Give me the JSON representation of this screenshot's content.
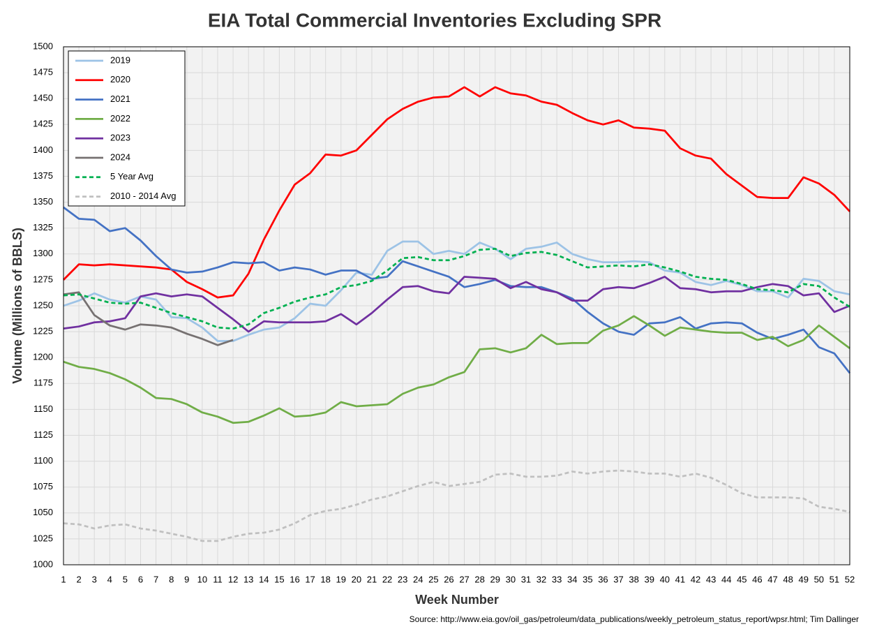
{
  "chart_data": {
    "type": "line",
    "title": "EIA Total Commercial Inventories Excluding SPR",
    "xlabel": "Week Number",
    "ylabel": "Volume (Millions of BBLS)",
    "source": "Source: http://www.eia.gov/oil_gas/petroleum/data_publications/weekly_petroleum_status_report/wpsr.html; Tim Dallinger",
    "x": [
      1,
      2,
      3,
      4,
      5,
      6,
      7,
      8,
      9,
      10,
      11,
      12,
      13,
      14,
      15,
      16,
      17,
      18,
      19,
      20,
      21,
      22,
      23,
      24,
      25,
      26,
      27,
      28,
      29,
      30,
      31,
      32,
      33,
      34,
      35,
      36,
      37,
      38,
      39,
      40,
      41,
      42,
      43,
      44,
      45,
      46,
      47,
      48,
      49,
      50,
      51,
      52
    ],
    "xlim": [
      1,
      52
    ],
    "xticks": [
      1,
      2,
      3,
      4,
      5,
      6,
      7,
      8,
      9,
      10,
      11,
      12,
      13,
      14,
      15,
      16,
      17,
      18,
      19,
      20,
      21,
      22,
      23,
      24,
      25,
      26,
      27,
      28,
      29,
      30,
      31,
      32,
      33,
      34,
      35,
      36,
      37,
      38,
      39,
      40,
      41,
      42,
      43,
      44,
      45,
      46,
      47,
      48,
      49,
      50,
      51,
      52
    ],
    "ylim": [
      1000,
      1500
    ],
    "yticks": [
      1000,
      1025,
      1050,
      1075,
      1100,
      1125,
      1150,
      1175,
      1200,
      1225,
      1250,
      1275,
      1300,
      1325,
      1350,
      1375,
      1400,
      1425,
      1450,
      1475,
      1500
    ],
    "grid": true,
    "legend": "upper left",
    "series": [
      {
        "name": "2019",
        "color": "#9dc3e6",
        "dashed": false,
        "values": [
          1250,
          1255,
          1262,
          1256,
          1253,
          1259,
          1256,
          1239,
          1238,
          1229,
          1216,
          1216,
          1222,
          1227,
          1229,
          1238,
          1252,
          1250,
          1265,
          1282,
          1280,
          1303,
          1312,
          1312,
          1300,
          1303,
          1300,
          1311,
          1305,
          1295,
          1305,
          1307,
          1311,
          1300,
          1295,
          1292,
          1292,
          1293,
          1292,
          1284,
          1282,
          1273,
          1270,
          1274,
          1270,
          1264,
          1264,
          1258,
          1276,
          1274,
          1264,
          1261
        ]
      },
      {
        "name": "2020",
        "color": "#ff0000",
        "dashed": false,
        "values": [
          1275,
          1290,
          1289,
          1290,
          1289,
          1288,
          1287,
          1285,
          1273,
          1266,
          1258,
          1260,
          1281,
          1314,
          1342,
          1367,
          1378,
          1396,
          1395,
          1400,
          1415,
          1430,
          1440,
          1447,
          1451,
          1452,
          1461,
          1452,
          1461,
          1455,
          1453,
          1447,
          1444,
          1436,
          1429,
          1425,
          1429,
          1422,
          1421,
          1419,
          1402,
          1395,
          1392,
          1377,
          1366,
          1355,
          1354,
          1354,
          1374,
          1368,
          1357,
          1341
        ]
      },
      {
        "name": "2021",
        "color": "#4472c4",
        "dashed": false,
        "values": [
          1345,
          1334,
          1333,
          1322,
          1325,
          1313,
          1298,
          1285,
          1282,
          1283,
          1287,
          1292,
          1291,
          1292,
          1284,
          1287,
          1285,
          1280,
          1284,
          1284,
          1276,
          1278,
          1293,
          1288,
          1283,
          1278,
          1268,
          1271,
          1275,
          1269,
          1268,
          1268,
          1263,
          1257,
          1244,
          1233,
          1225,
          1222,
          1233,
          1234,
          1239,
          1228,
          1233,
          1234,
          1233,
          1224,
          1218,
          1222,
          1227,
          1210,
          1204,
          1185
        ]
      },
      {
        "name": "2022",
        "color": "#70ad47",
        "dashed": false,
        "values": [
          1196,
          1191,
          1189,
          1185,
          1179,
          1171,
          1161,
          1160,
          1155,
          1147,
          1143,
          1137,
          1138,
          1144,
          1151,
          1143,
          1144,
          1147,
          1157,
          1153,
          1154,
          1155,
          1165,
          1171,
          1174,
          1181,
          1186,
          1208,
          1209,
          1205,
          1209,
          1222,
          1213,
          1214,
          1214,
          1226,
          1231,
          1240,
          1231,
          1221,
          1229,
          1227,
          1225,
          1224,
          1224,
          1217,
          1220,
          1211,
          1217,
          1231,
          1220,
          1209
        ]
      },
      {
        "name": "2023",
        "color": "#7030a0",
        "dashed": false,
        "values": [
          1228,
          1230,
          1234,
          1235,
          1238,
          1259,
          1262,
          1259,
          1261,
          1259,
          1248,
          1237,
          1225,
          1235,
          1234,
          1234,
          1234,
          1235,
          1242,
          1232,
          1243,
          1256,
          1268,
          1269,
          1264,
          1262,
          1278,
          1277,
          1276,
          1267,
          1273,
          1266,
          1263,
          1255,
          1255,
          1266,
          1268,
          1267,
          1272,
          1278,
          1267,
          1266,
          1263,
          1264,
          1264,
          1268,
          1271,
          1269,
          1260,
          1262,
          1244,
          1250
        ]
      },
      {
        "name": "2024",
        "color": "#767171",
        "dashed": false,
        "values": [
          1261,
          1263,
          1241,
          1231,
          1227,
          1232,
          1231,
          1229,
          1223,
          1218,
          1212,
          1217,
          null,
          null,
          null,
          null,
          null,
          null,
          null,
          null,
          null,
          null,
          null,
          null,
          null,
          null,
          null,
          null,
          null,
          null,
          null,
          null,
          null,
          null,
          null,
          null,
          null,
          null,
          null,
          null,
          null,
          null,
          null,
          null,
          null,
          null,
          null,
          null,
          null,
          null,
          null,
          null
        ]
      },
      {
        "name": "5 Year Avg",
        "color": "#00b050",
        "dashed": true,
        "values": [
          1260,
          1261,
          1257,
          1253,
          1252,
          1253,
          1248,
          1243,
          1239,
          1235,
          1229,
          1228,
          1232,
          1243,
          1248,
          1254,
          1258,
          1261,
          1268,
          1270,
          1274,
          1284,
          1296,
          1297,
          1294,
          1294,
          1298,
          1304,
          1305,
          1298,
          1301,
          1302,
          1299,
          1293,
          1287,
          1288,
          1289,
          1288,
          1290,
          1287,
          1283,
          1278,
          1276,
          1275,
          1271,
          1266,
          1265,
          1263,
          1271,
          1269,
          1258,
          1249
        ]
      },
      {
        "name": "2010 - 2014 Avg",
        "color": "#c0c0c0",
        "dashed": true,
        "values": [
          1040,
          1039,
          1035,
          1038,
          1039,
          1035,
          1033,
          1030,
          1027,
          1023,
          1023,
          1027,
          1030,
          1031,
          1034,
          1040,
          1048,
          1052,
          1054,
          1058,
          1063,
          1066,
          1071,
          1076,
          1080,
          1076,
          1078,
          1080,
          1087,
          1088,
          1085,
          1085,
          1086,
          1090,
          1088,
          1090,
          1091,
          1090,
          1088,
          1088,
          1085,
          1088,
          1084,
          1077,
          1069,
          1065,
          1065,
          1065,
          1064,
          1056,
          1054,
          1051
        ]
      }
    ]
  }
}
